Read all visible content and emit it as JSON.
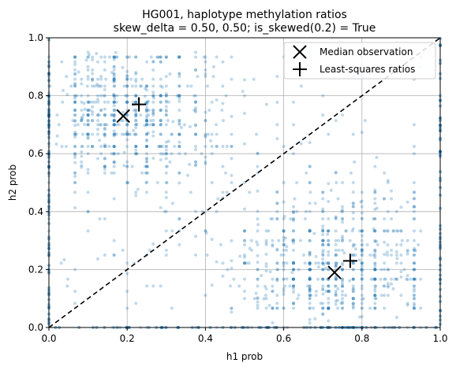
{
  "chart_data": {
    "type": "scatter",
    "title_line1": "HG001, haplotype methylation ratios",
    "title_line2": "skew_delta = 0.50, 0.50; is_skewed(0.2) = True",
    "xlabel": "h1 prob",
    "ylabel": "h2 prob",
    "xlim": [
      0.0,
      1.0
    ],
    "ylim": [
      0.0,
      1.0
    ],
    "x_ticks": [
      "0.0",
      "0.2",
      "0.4",
      "0.6",
      "0.8",
      "1.0"
    ],
    "y_ticks": [
      "0.0",
      "0.2",
      "0.4",
      "0.6",
      "0.8",
      "1.0"
    ],
    "grid": true,
    "legend_position": "top-right",
    "scatter_color": "#1f77b4",
    "diagonal": {
      "x": [
        0.0,
        1.0
      ],
      "y": [
        0.0,
        1.0
      ],
      "style": "dashed",
      "color": "#000000"
    },
    "series": [
      {
        "name": "Median observation",
        "marker": "x",
        "points": [
          [
            0.19,
            0.73
          ],
          [
            0.73,
            0.19
          ]
        ]
      },
      {
        "name": "Least-squares ratios",
        "marker": "+",
        "points": [
          [
            0.23,
            0.77
          ],
          [
            0.77,
            0.23
          ]
        ]
      }
    ],
    "clusters": [
      {
        "center": [
          0.2,
          0.73
        ],
        "spread": [
          0.12,
          0.12
        ],
        "count": 700
      },
      {
        "center": [
          0.73,
          0.2
        ],
        "spread": [
          0.12,
          0.12
        ],
        "count": 700
      },
      {
        "center": [
          0.5,
          0.5
        ],
        "spread": [
          0.3,
          0.3
        ],
        "count": 260
      }
    ]
  }
}
